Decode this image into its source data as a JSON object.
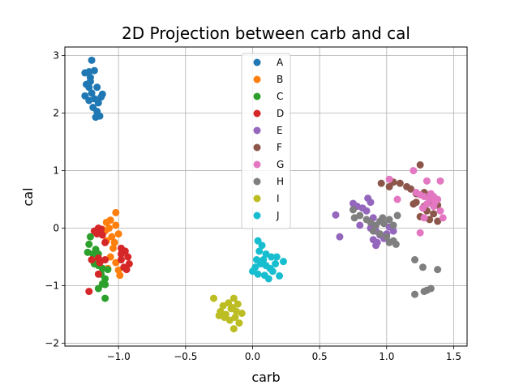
{
  "chart_data": {
    "type": "scatter",
    "title": "2D Projection between carb and cal",
    "xlabel": "carb",
    "ylabel": "cal",
    "xlim": [
      -1.4,
      1.6
    ],
    "ylim": [
      -2.05,
      3.15
    ],
    "xticks": [
      -1.0,
      -0.5,
      0.0,
      0.5,
      1.0,
      1.5
    ],
    "xtick_labels": [
      "−1.0",
      "−0.5",
      "0.0",
      "0.5",
      "1.0",
      "1.5"
    ],
    "yticks": [
      -2,
      -1,
      0,
      1,
      2,
      3
    ],
    "ytick_labels": [
      "−2",
      "−1",
      "0",
      "1",
      "2",
      "3"
    ],
    "grid": true,
    "legend_position": "top-center",
    "series": [
      {
        "name": "A",
        "color": "#1f77b4",
        "points": [
          [
            -1.2,
            2.92
          ],
          [
            -1.22,
            2.72
          ],
          [
            -1.25,
            2.7
          ],
          [
            -1.18,
            2.74
          ],
          [
            -1.21,
            2.62
          ],
          [
            -1.24,
            2.5
          ],
          [
            -1.22,
            2.45
          ],
          [
            -1.16,
            2.45
          ],
          [
            -1.2,
            2.35
          ],
          [
            -1.25,
            2.3
          ],
          [
            -1.12,
            2.33
          ],
          [
            -1.18,
            2.25
          ],
          [
            -1.22,
            2.22
          ],
          [
            -1.15,
            2.18
          ],
          [
            -1.19,
            2.1
          ],
          [
            -1.16,
            2.03
          ],
          [
            -1.17,
            1.93
          ],
          [
            -1.14,
            1.95
          ],
          [
            -1.21,
            2.55
          ],
          [
            -1.13,
            2.28
          ]
        ]
      },
      {
        "name": "B",
        "color": "#ff7f0e",
        "points": [
          [
            -1.02,
            0.27
          ],
          [
            -1.06,
            0.14
          ],
          [
            -1.09,
            0.1
          ],
          [
            -1.02,
            0.05
          ],
          [
            -1.07,
            0.0
          ],
          [
            -1.12,
            -0.02
          ],
          [
            -1.0,
            -0.1
          ],
          [
            -1.05,
            -0.15
          ],
          [
            -1.09,
            -0.22
          ],
          [
            -1.04,
            -0.35
          ],
          [
            -1.06,
            -0.5
          ],
          [
            -1.02,
            -0.6
          ],
          [
            -1.0,
            -0.73
          ],
          [
            -0.99,
            -0.82
          ],
          [
            -1.08,
            -0.7
          ],
          [
            -1.03,
            -0.25
          ],
          [
            -1.1,
            -0.05
          ]
        ]
      },
      {
        "name": "C",
        "color": "#2ca02c",
        "points": [
          [
            -1.21,
            -0.15
          ],
          [
            -1.22,
            -0.28
          ],
          [
            -1.23,
            -0.42
          ],
          [
            -1.19,
            -0.45
          ],
          [
            -1.17,
            -0.37
          ],
          [
            -1.15,
            -0.45
          ],
          [
            -1.2,
            -0.55
          ],
          [
            -1.18,
            -0.62
          ],
          [
            -1.15,
            -0.65
          ],
          [
            -1.12,
            -0.7
          ],
          [
            -1.08,
            -0.72
          ],
          [
            -1.13,
            -0.8
          ],
          [
            -1.1,
            -0.88
          ],
          [
            -1.12,
            -0.97
          ],
          [
            -1.15,
            -1.05
          ],
          [
            -1.1,
            -0.98
          ],
          [
            -1.1,
            -1.22
          ],
          [
            -1.16,
            -0.6
          ]
        ]
      },
      {
        "name": "D",
        "color": "#d62728",
        "points": [
          [
            -1.18,
            -0.05
          ],
          [
            -1.15,
            0.0
          ],
          [
            -1.13,
            -0.02
          ],
          [
            -1.16,
            -0.1
          ],
          [
            -1.12,
            -0.12
          ],
          [
            -1.1,
            -0.25
          ],
          [
            -1.2,
            -0.55
          ],
          [
            -1.15,
            -0.52
          ],
          [
            -1.1,
            -0.55
          ],
          [
            -1.14,
            -0.6
          ],
          [
            -1.15,
            -0.8
          ],
          [
            -1.22,
            -1.1
          ],
          [
            -0.98,
            -0.45
          ],
          [
            -0.95,
            -0.4
          ],
          [
            -0.93,
            -0.5
          ],
          [
            -0.98,
            -0.55
          ],
          [
            -0.92,
            -0.62
          ],
          [
            -0.96,
            -0.68
          ],
          [
            -0.98,
            -0.35
          ],
          [
            -0.94,
            -0.72
          ]
        ]
      },
      {
        "name": "E",
        "color": "#9467bd",
        "points": [
          [
            0.62,
            0.23
          ],
          [
            0.75,
            0.43
          ],
          [
            0.78,
            0.38
          ],
          [
            0.82,
            0.35
          ],
          [
            0.86,
            0.52
          ],
          [
            0.88,
            0.45
          ],
          [
            0.85,
            0.3
          ],
          [
            0.9,
            0.18
          ],
          [
            0.8,
            0.05
          ],
          [
            0.88,
            0.0
          ],
          [
            0.92,
            -0.05
          ],
          [
            0.95,
            -0.12
          ],
          [
            0.9,
            -0.2
          ],
          [
            0.93,
            -0.25
          ],
          [
            0.92,
            -0.3
          ],
          [
            0.98,
            -0.18
          ],
          [
            1.0,
            -0.1
          ],
          [
            1.02,
            0.02
          ],
          [
            1.05,
            -0.05
          ],
          [
            0.65,
            -0.15
          ]
        ]
      },
      {
        "name": "F",
        "color": "#8c564b",
        "points": [
          [
            0.96,
            0.78
          ],
          [
            1.02,
            0.72
          ],
          [
            1.05,
            0.8
          ],
          [
            1.1,
            0.78
          ],
          [
            1.15,
            0.72
          ],
          [
            1.18,
            0.68
          ],
          [
            1.25,
            1.1
          ],
          [
            1.28,
            0.62
          ],
          [
            1.3,
            0.55
          ],
          [
            1.22,
            0.45
          ],
          [
            1.28,
            0.38
          ],
          [
            1.3,
            0.3
          ],
          [
            1.25,
            0.2
          ],
          [
            1.32,
            0.15
          ],
          [
            1.38,
            0.12
          ],
          [
            1.35,
            0.25
          ],
          [
            1.38,
            0.4
          ],
          [
            1.22,
            0.6
          ],
          [
            1.2,
            0.42
          ],
          [
            1.33,
            0.48
          ]
        ]
      },
      {
        "name": "G",
        "color": "#e377c2",
        "points": [
          [
            1.02,
            0.85
          ],
          [
            1.2,
            1.0
          ],
          [
            1.3,
            0.82
          ],
          [
            1.4,
            0.82
          ],
          [
            1.22,
            0.62
          ],
          [
            1.25,
            0.58
          ],
          [
            1.28,
            0.55
          ],
          [
            1.32,
            0.5
          ],
          [
            1.35,
            0.55
          ],
          [
            1.38,
            0.5
          ],
          [
            1.3,
            0.42
          ],
          [
            1.35,
            0.38
          ],
          [
            1.4,
            0.3
          ],
          [
            1.42,
            0.18
          ],
          [
            1.28,
            0.18
          ],
          [
            1.08,
            0.5
          ],
          [
            1.25,
            -0.08
          ],
          [
            1.33,
            0.6
          ],
          [
            1.27,
            0.35
          ],
          [
            1.36,
            0.45
          ]
        ]
      },
      {
        "name": "H",
        "color": "#7f7f7f",
        "points": [
          [
            0.75,
            0.32
          ],
          [
            0.8,
            0.22
          ],
          [
            0.76,
            0.18
          ],
          [
            0.85,
            0.15
          ],
          [
            0.88,
            0.1
          ],
          [
            0.92,
            0.05
          ],
          [
            0.95,
            0.12
          ],
          [
            0.98,
            0.08
          ],
          [
            1.02,
            0.15
          ],
          [
            1.05,
            0.05
          ],
          [
            1.08,
            0.22
          ],
          [
            0.9,
            -0.05
          ],
          [
            0.95,
            -0.1
          ],
          [
            1.0,
            -0.15
          ],
          [
            1.05,
            -0.22
          ],
          [
            1.02,
            -0.25
          ],
          [
            1.07,
            -0.28
          ],
          [
            1.21,
            -0.55
          ],
          [
            1.27,
            -0.68
          ],
          [
            1.38,
            -0.72
          ],
          [
            1.3,
            -1.08
          ],
          [
            1.28,
            -1.1
          ],
          [
            1.21,
            -1.15
          ],
          [
            1.33,
            -1.05
          ],
          [
            0.97,
            0.18
          ]
        ]
      },
      {
        "name": "I",
        "color": "#bcbd22",
        "points": [
          [
            -0.29,
            -1.22
          ],
          [
            -0.22,
            -1.35
          ],
          [
            -0.18,
            -1.3
          ],
          [
            -0.14,
            -1.22
          ],
          [
            -0.11,
            -1.32
          ],
          [
            -0.24,
            -1.45
          ],
          [
            -0.2,
            -1.5
          ],
          [
            -0.16,
            -1.4
          ],
          [
            -0.12,
            -1.45
          ],
          [
            -0.08,
            -1.48
          ],
          [
            -0.21,
            -1.55
          ],
          [
            -0.17,
            -1.6
          ],
          [
            -0.13,
            -1.55
          ],
          [
            -0.1,
            -1.65
          ],
          [
            -0.14,
            -1.75
          ],
          [
            -0.25,
            -1.52
          ],
          [
            -0.15,
            -1.38
          ]
        ]
      },
      {
        "name": "J",
        "color": "#17becf",
        "points": [
          [
            0.04,
            -0.22
          ],
          [
            0.07,
            -0.3
          ],
          [
            0.05,
            -0.4
          ],
          [
            0.1,
            -0.45
          ],
          [
            0.14,
            -0.5
          ],
          [
            0.18,
            -0.5
          ],
          [
            0.23,
            -0.58
          ],
          [
            0.03,
            -0.55
          ],
          [
            0.06,
            -0.62
          ],
          [
            0.1,
            -0.65
          ],
          [
            0.13,
            -0.7
          ],
          [
            0.17,
            -0.62
          ],
          [
            0.0,
            -0.75
          ],
          [
            0.04,
            -0.8
          ],
          [
            0.09,
            -0.82
          ],
          [
            0.12,
            -0.88
          ],
          [
            0.2,
            -0.83
          ],
          [
            0.15,
            -0.75
          ],
          [
            0.08,
            -0.55
          ],
          [
            0.02,
            -0.68
          ]
        ]
      }
    ]
  }
}
